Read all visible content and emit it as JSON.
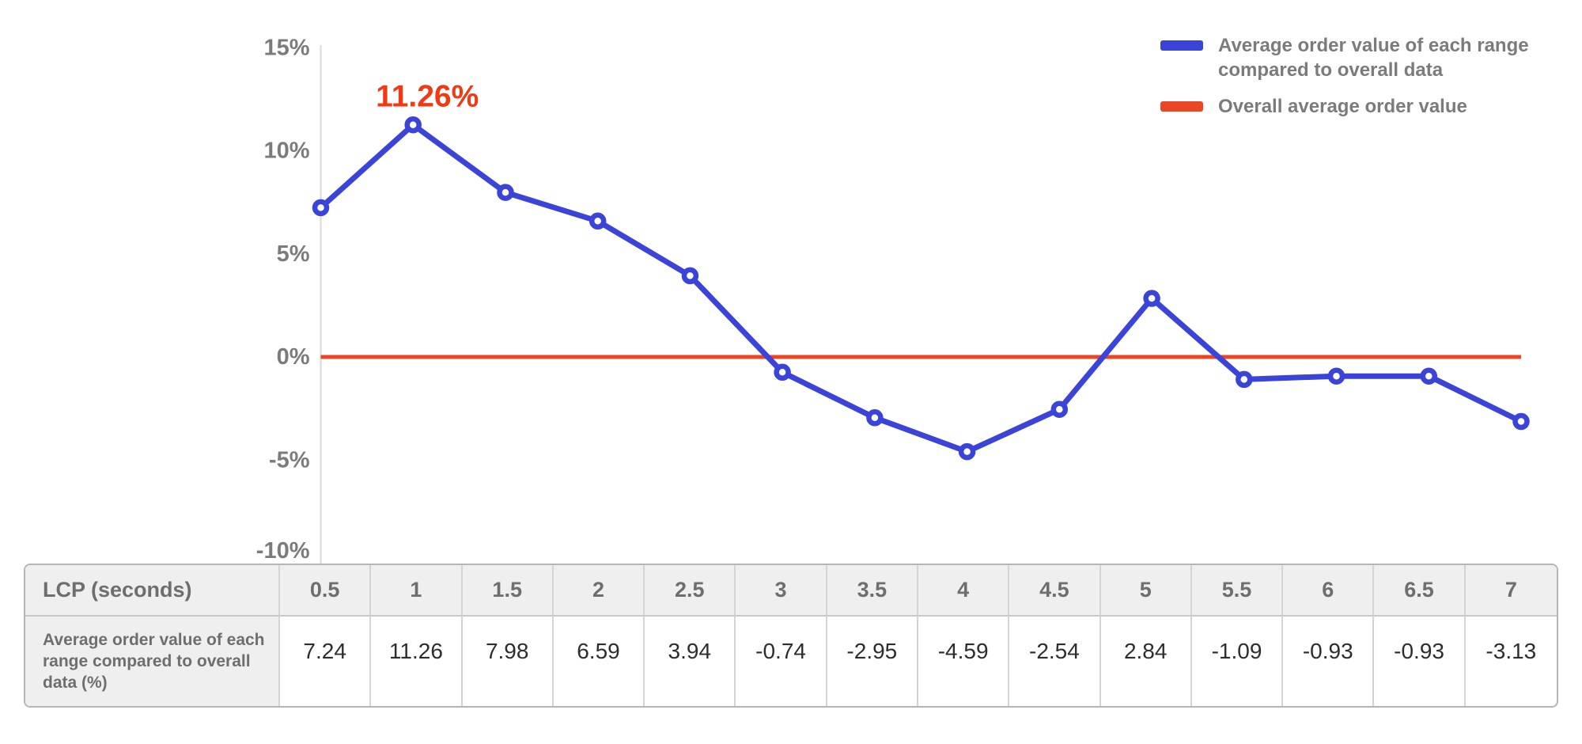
{
  "chart_data": {
    "type": "line",
    "title": "",
    "xlabel": "LCP (seconds)",
    "ylabel": "",
    "x": [
      0.5,
      1,
      1.5,
      2,
      2.5,
      3,
      3.5,
      4,
      4.5,
      5,
      5.5,
      6,
      6.5,
      7
    ],
    "series": [
      {
        "name": "Average order value of each range compared to overall data",
        "type": "line",
        "color": "#3b44d8",
        "marker": "open-circle",
        "values": [
          7.24,
          11.26,
          7.98,
          6.59,
          3.94,
          -0.74,
          -2.95,
          -4.59,
          -2.54,
          2.84,
          -1.09,
          -0.93,
          -0.93,
          -3.13
        ]
      },
      {
        "name": "Overall average order value",
        "type": "horizontal-reference-line",
        "color": "#ea4524",
        "value": 0
      }
    ],
    "yticks": [
      {
        "label": "15%",
        "value": 15
      },
      {
        "label": "10%",
        "value": 10
      },
      {
        "label": "5%",
        "value": 5
      },
      {
        "label": "0%",
        "value": 0
      },
      {
        "label": "-5%",
        "value": -5
      },
      {
        "label": "-10%",
        "value": -10
      }
    ],
    "ylim": [
      -10,
      15
    ],
    "grid": false,
    "legend_position": "top-right",
    "annotation": {
      "text": "11.26%",
      "x": 1,
      "y": 11.26,
      "color": "#f03a15"
    }
  },
  "legend": {
    "items": [
      {
        "label": "Average order value of each range compared to overall data",
        "color": "#3b44d8"
      },
      {
        "label": "Overall average order value",
        "color": "#ea4524"
      }
    ]
  },
  "table": {
    "header_label": "LCP (seconds)",
    "row_label": "Average order value of each range compared to overall data (%)",
    "columns": [
      "0.5",
      "1",
      "1.5",
      "2",
      "2.5",
      "3",
      "3.5",
      "4",
      "4.5",
      "5",
      "5.5",
      "6",
      "6.5",
      "7"
    ],
    "values": [
      "7.24",
      "11.26",
      "7.98",
      "6.59",
      "3.94",
      "-0.74",
      "-2.95",
      "-4.59",
      "-2.54",
      "2.84",
      "-1.09",
      "-0.93",
      "-0.93",
      "-3.13"
    ]
  },
  "colors": {
    "series_line": "#3b44d8",
    "reference_line": "#ea4524",
    "annotation_text": "#f03a15",
    "axis_text": "#7b7b7b",
    "axis_line": "#dadada",
    "table_header_bg": "#efefef",
    "table_border": "#c9c9c9",
    "table_value_text": "#2d2d2d"
  }
}
